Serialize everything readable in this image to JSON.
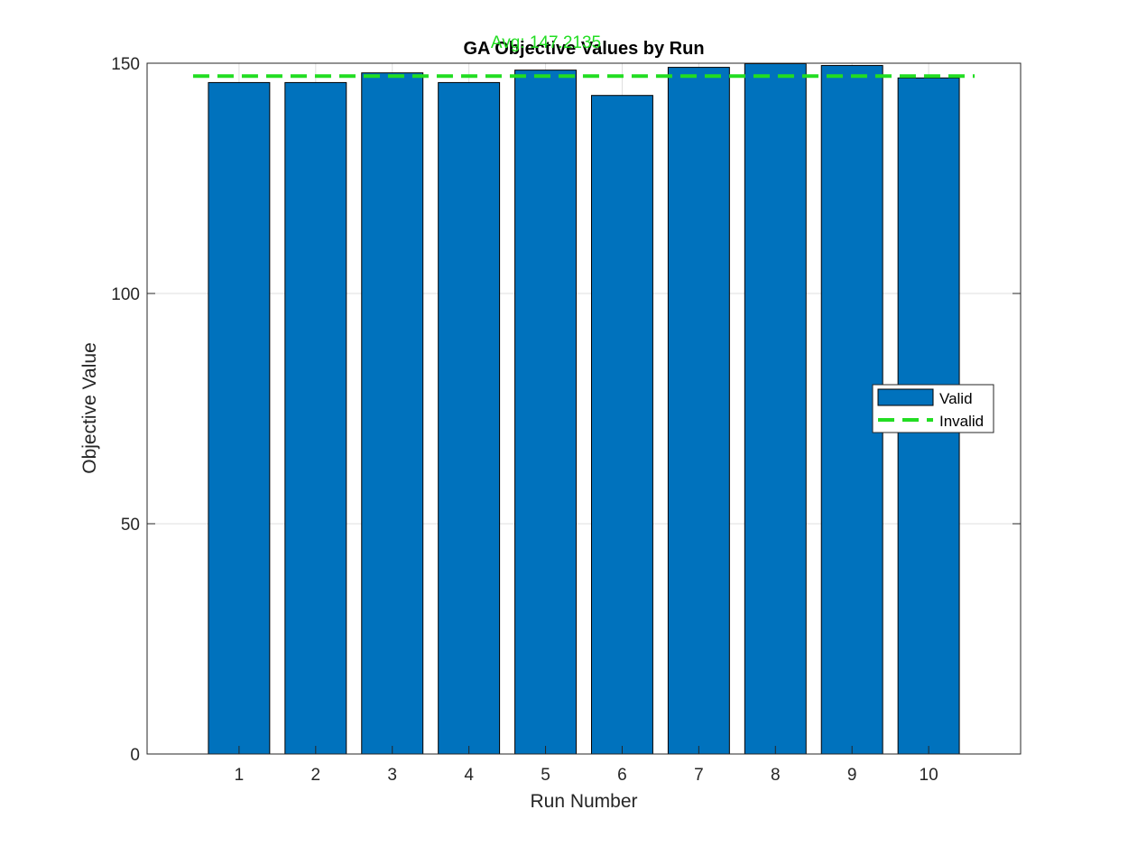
{
  "chart_data": {
    "type": "bar",
    "title": "GA Objective Values by Run",
    "xlabel": "Run Number",
    "ylabel": "Objective Value",
    "categories": [
      "1",
      "2",
      "3",
      "4",
      "5",
      "6",
      "7",
      "8",
      "9",
      "10"
    ],
    "values": [
      145.8,
      145.8,
      147.9,
      145.8,
      148.5,
      143.0,
      149.1,
      149.9,
      149.5,
      146.8
    ],
    "ylim": [
      0,
      150
    ],
    "yticks": [
      "0",
      "50",
      "100",
      "150"
    ],
    "grid": true,
    "bar_color": "#0072bd",
    "average": {
      "value": 147.2135,
      "label": "Avg: 147.2135",
      "color": "#22dd22",
      "style": "dashed"
    },
    "legend": {
      "placement": "right",
      "entries": [
        {
          "label": "Valid",
          "kind": "bar",
          "color": "#0072bd"
        },
        {
          "label": "Invalid",
          "kind": "dashed-line",
          "color": "#22dd22"
        }
      ]
    }
  }
}
